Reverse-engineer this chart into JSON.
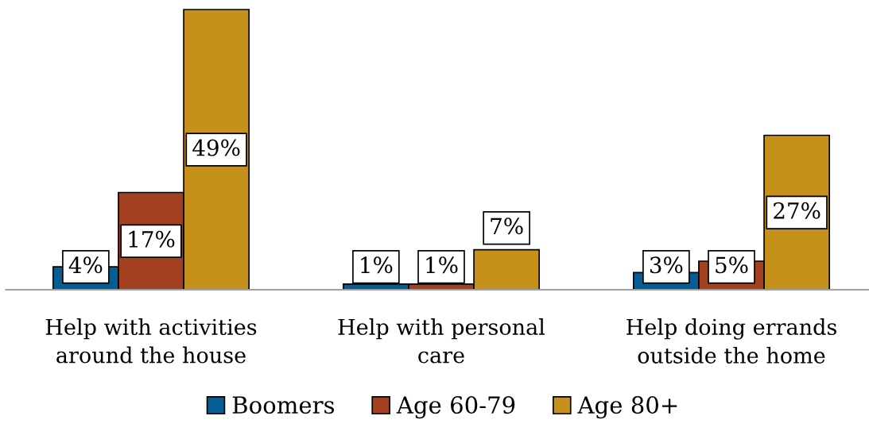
{
  "chart_data": {
    "type": "bar",
    "categories": [
      "Help with activities\naround the house",
      "Help with personal\ncare",
      "Help doing errands\noutside the home"
    ],
    "series": [
      {
        "name": "Boomers",
        "color": "#045e94",
        "values": [
          4,
          1,
          3
        ],
        "value_labels": [
          "4%",
          "1%",
          "3%"
        ]
      },
      {
        "name": "Age 60-79",
        "color": "#a34020",
        "values": [
          17,
          1,
          5
        ],
        "value_labels": [
          "17%",
          "1%",
          "5%"
        ]
      },
      {
        "name": "Age 80+",
        "color": "#c5911a",
        "values": [
          49,
          7,
          27
        ],
        "value_labels": [
          "49%",
          "7%",
          "27%"
        ]
      }
    ],
    "legend": "bottom"
  }
}
